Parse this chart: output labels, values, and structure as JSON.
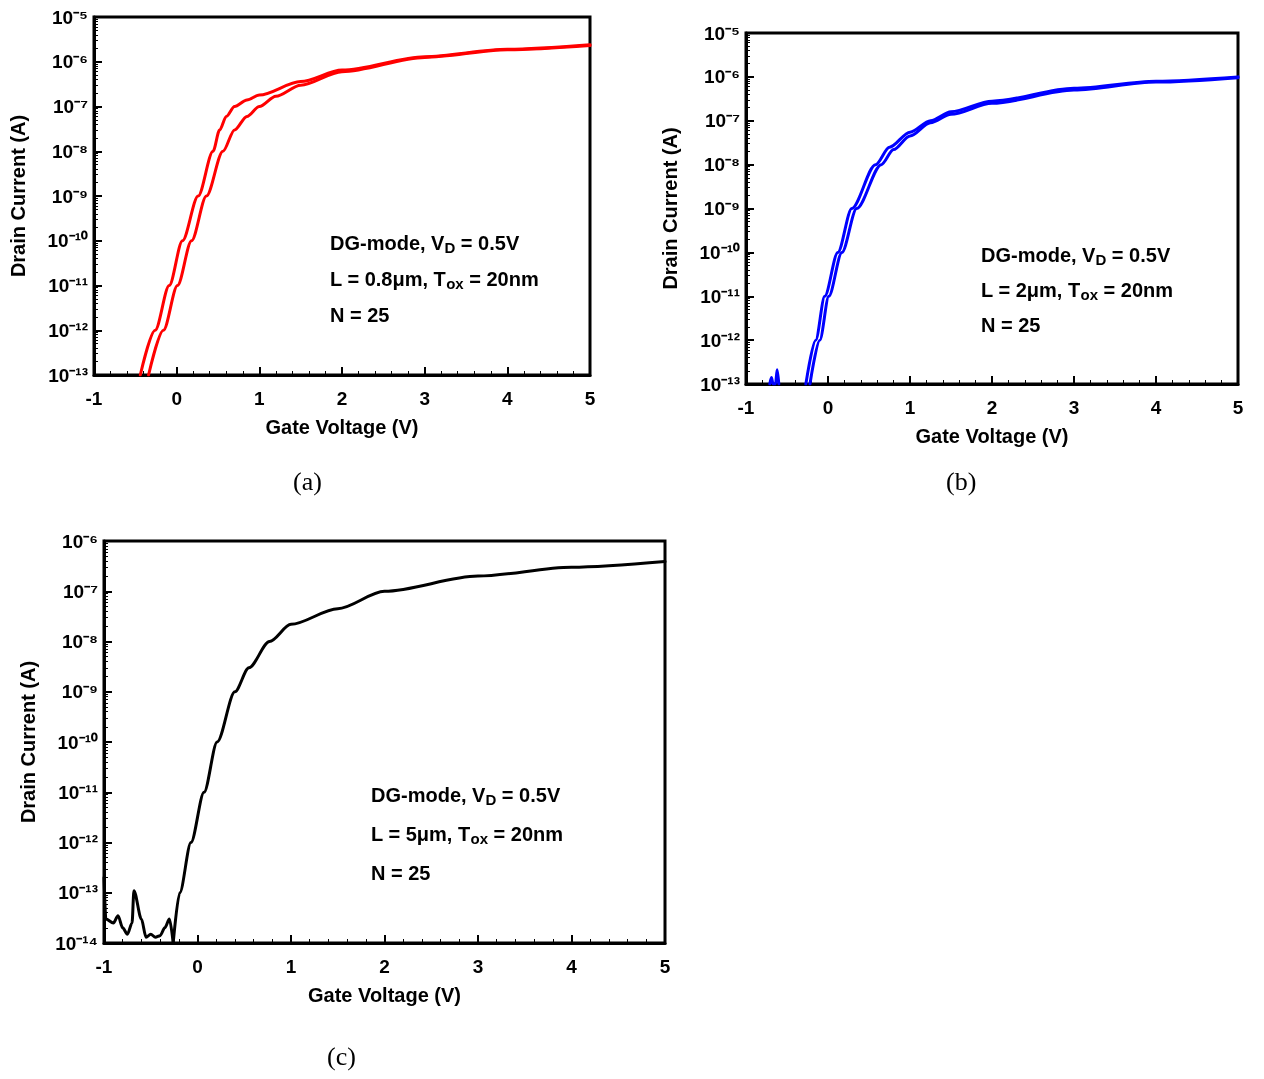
{
  "chart_data": [
    {
      "type": "line",
      "xlabel": "Gate Voltage (V)",
      "ylabel": "Drain Current (A)",
      "log": "y",
      "annotations": [
        "DG-mode, V$_{D}$ = 0.5V",
        "L = 0.8μm, T$_{ox}$ = 20nm",
        "N = 25",
        "(a)"
      ],
      "xlim": [
        -1,
        5
      ],
      "xticks": [
        -1,
        0,
        1,
        2,
        3,
        4,
        5
      ],
      "ylim": [
        1e-13,
        1e-05
      ],
      "yticks": [
        {
          "value": 1e-13,
          "label": "10⁻¹³"
        },
        {
          "value": 1e-12,
          "label": "10⁻¹²"
        },
        {
          "value": 1e-11,
          "label": "10⁻¹¹"
        },
        {
          "value": 1e-10,
          "label": "10⁻¹⁰"
        },
        {
          "value": 1e-09,
          "label": "10⁻⁹"
        },
        {
          "value": 1e-08,
          "label": "10⁻⁸"
        },
        {
          "value": 1e-07,
          "label": "10⁻⁷"
        },
        {
          "value": 1e-06,
          "label": "10⁻⁶"
        },
        {
          "value": 1e-05,
          "label": "10⁻⁵"
        }
      ],
      "series": [
        {
          "color": "#ff0000",
          "x": [
            -0.44,
            -0.26,
            -0.09,
            0.07,
            0.26,
            0.44,
            0.52,
            0.6,
            0.7,
            0.85,
            1,
            1.5,
            2,
            3,
            4,
            5
          ],
          "values": [
            1e-13,
            1e-12,
            1e-11,
            1e-10,
            1e-09,
            1e-08,
            3e-08,
            6e-08,
            1e-07,
            1.4e-07,
            1.8e-07,
            3.6e-07,
            6.5e-07,
            1.3e-06,
            1.9e-06,
            2.4e-06
          ]
        },
        {
          "color": "#ff0000",
          "x": [
            -0.34,
            -0.16,
            0.01,
            0.18,
            0.36,
            0.56,
            0.7,
            0.85,
            1,
            1.2,
            1.5,
            2,
            3,
            4,
            5
          ],
          "values": [
            1e-13,
            1e-12,
            1e-11,
            1e-10,
            1e-09,
            1e-08,
            3e-08,
            6e-08,
            1e-07,
            1.7e-07,
            3e-07,
            6e-07,
            1.25e-06,
            1.85e-06,
            2.3e-06
          ]
        }
      ]
    },
    {
      "type": "line",
      "xlabel": "Gate Voltage (V)",
      "ylabel": "Drain Current (A)",
      "log": "y",
      "annotations": [
        "DG-mode, V$_{D}$ = 0.5V",
        "L = 2μm, T$_{ox}$ = 20nm",
        "N = 25",
        "(b)"
      ],
      "xlim": [
        -1,
        5
      ],
      "xticks": [
        -1,
        0,
        1,
        2,
        3,
        4,
        5
      ],
      "ylim": [
        1e-13,
        1e-05
      ],
      "yticks": [
        {
          "value": 1e-13,
          "label": "10⁻¹³"
        },
        {
          "value": 1e-12,
          "label": "10⁻¹²"
        },
        {
          "value": 1e-11,
          "label": "10⁻¹¹"
        },
        {
          "value": 1e-10,
          "label": "10⁻¹⁰"
        },
        {
          "value": 1e-09,
          "label": "10⁻⁹"
        },
        {
          "value": 1e-08,
          "label": "10⁻⁸"
        },
        {
          "value": 1e-07,
          "label": "10⁻⁷"
        },
        {
          "value": 1e-06,
          "label": "10⁻⁶"
        },
        {
          "value": 1e-05,
          "label": "10⁻⁵"
        }
      ],
      "series": [
        {
          "color": "#0000ff",
          "x": [
            -0.27,
            -0.15,
            -0.04,
            0.12,
            0.29,
            0.58,
            0.75,
            1,
            1.25,
            1.5,
            2,
            3,
            4,
            5
          ],
          "values": [
            1e-13,
            1e-12,
            1e-11,
            1e-10,
            1e-09,
            1e-08,
            2.5e-08,
            5.5e-08,
            1e-07,
            1.6e-07,
            2.8e-07,
            5.5e-07,
            8e-07,
            1e-06
          ]
        },
        {
          "color": "#0000ff",
          "x": [
            -0.22,
            -0.1,
            0.01,
            0.17,
            0.35,
            0.65,
            0.8,
            1,
            1.25,
            1.5,
            2,
            3,
            4,
            5
          ],
          "values": [
            1e-13,
            1e-12,
            1e-11,
            1e-10,
            1e-09,
            1e-08,
            2.2e-08,
            4.5e-08,
            9e-08,
            1.4e-07,
            2.5e-07,
            5e-07,
            7.6e-07,
            9.6e-07
          ]
        },
        {
          "color": "#0000ff",
          "x": [
            -0.71,
            -0.69,
            -0.67,
            -0.64,
            -0.62,
            -0.6
          ],
          "values": [
            1e-13,
            1.4e-13,
            1e-13,
            1e-13,
            2.1e-13,
            1e-13
          ]
        }
      ]
    },
    {
      "type": "line",
      "xlabel": "Gate Voltage (V)",
      "ylabel": "Drain Current (A)",
      "log": "y",
      "annotations": [
        "DG-mode, V$_{D}$ = 0.5V",
        "L = 5μm, T$_{ox}$ = 20nm",
        "N = 25",
        "(c)"
      ],
      "xlim": [
        -1,
        5
      ],
      "xticks": [
        -1,
        0,
        1,
        2,
        3,
        4,
        5
      ],
      "ylim": [
        1e-14,
        1e-06
      ],
      "yticks": [
        {
          "value": 1e-14,
          "label": "10⁻¹⁴"
        },
        {
          "value": 1e-13,
          "label": "10⁻¹³"
        },
        {
          "value": 1e-12,
          "label": "10⁻¹²"
        },
        {
          "value": 1e-11,
          "label": "10⁻¹¹"
        },
        {
          "value": 1e-10,
          "label": "10⁻¹⁰"
        },
        {
          "value": 1e-09,
          "label": "10⁻⁹"
        },
        {
          "value": 1e-08,
          "label": "10⁻⁸"
        },
        {
          "value": 1e-07,
          "label": "10⁻⁷"
        },
        {
          "value": 1e-06,
          "label": "10⁻⁶"
        }
      ],
      "series": [
        {
          "color": "#000000",
          "x": [
            -0.26,
            -0.19,
            -0.07,
            0.07,
            0.21,
            0.4,
            0.55,
            0.77,
            1,
            1.5,
            2,
            3,
            4,
            5
          ],
          "values": [
            1e-14,
            1e-13,
            1e-12,
            1e-11,
            1e-10,
            1e-09,
            3e-09,
            1e-08,
            2.2e-08,
            4.5e-08,
            1e-07,
            2e-07,
            3e-07,
            3.9e-07
          ]
        },
        {
          "color": "#000000",
          "x": [
            -1,
            -0.98,
            -0.9,
            -0.85,
            -0.8,
            -0.75,
            -0.7,
            -0.68,
            -0.6,
            -0.55,
            -0.5,
            -0.45,
            -0.4,
            -0.35,
            -0.3,
            -0.26
          ],
          "values": [
            2e-13,
            3e-14,
            2.5e-14,
            3.5e-14,
            2e-14,
            1.5e-14,
            2.5e-14,
            1.1e-13,
            3e-14,
            1.3e-14,
            1.5e-14,
            1.3e-14,
            1.4e-14,
            2e-14,
            3e-14,
            1e-14
          ]
        }
      ]
    }
  ]
}
